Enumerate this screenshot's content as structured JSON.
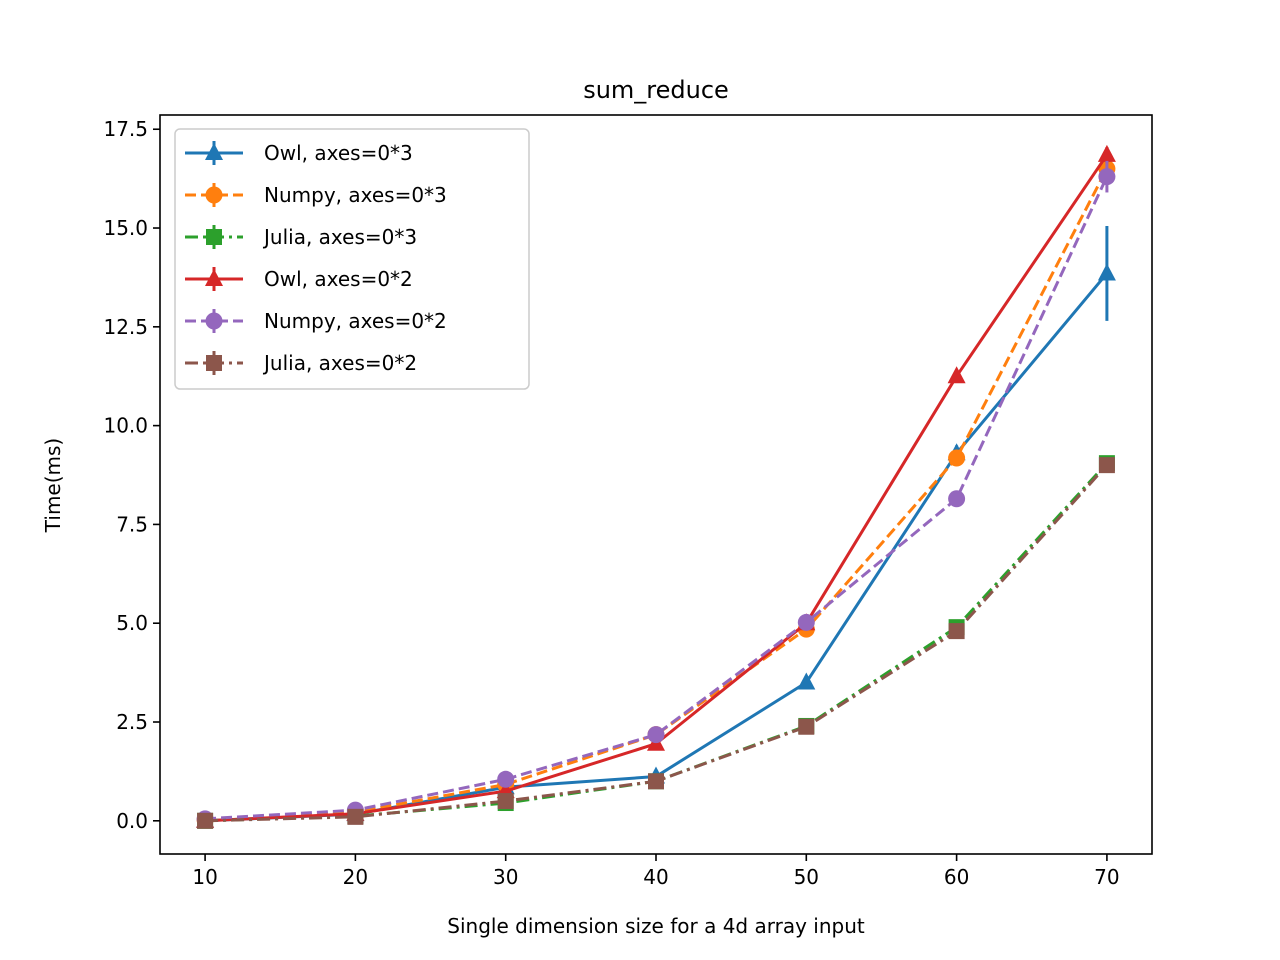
{
  "chart_data": {
    "type": "line",
    "title": "sum_reduce",
    "xlabel": "Single dimension size for a 4d array input",
    "ylabel": "Time(ms)",
    "xlim": [
      7,
      73
    ],
    "ylim": [
      -0.84,
      17.86
    ],
    "xticks": [
      10,
      20,
      30,
      40,
      50,
      60,
      70
    ],
    "yticks": [
      0.0,
      2.5,
      5.0,
      7.5,
      10.0,
      12.5,
      15.0,
      17.5
    ],
    "ytick_labels": [
      "0.0",
      "2.5",
      "5.0",
      "7.5",
      "10.0",
      "12.5",
      "15.0",
      "17.5"
    ],
    "grid": false,
    "legend_position": "top-left",
    "x": [
      10,
      20,
      30,
      40,
      50,
      60,
      70
    ],
    "series": [
      {
        "name": "Owl, axes=0*3",
        "color": "#1f77b4",
        "dash": "solid",
        "marker": "triangle",
        "values": [
          0.0,
          0.17,
          0.85,
          1.12,
          3.5,
          9.3,
          13.85
        ],
        "errors": [
          0.02,
          0.03,
          0.05,
          0.05,
          0.1,
          0.2,
          1.2
        ]
      },
      {
        "name": "Numpy, axes=0*3",
        "color": "#ff7f0e",
        "dash": "dashed",
        "marker": "circle",
        "values": [
          0.02,
          0.22,
          0.92,
          2.18,
          4.85,
          9.18,
          16.5
        ],
        "errors": [
          0.01,
          0.02,
          0.04,
          0.05,
          0.08,
          0.15,
          0.3
        ]
      },
      {
        "name": "Julia, axes=0*3",
        "color": "#2ca02c",
        "dash": "dashdot",
        "marker": "square",
        "values": [
          0.0,
          0.12,
          0.45,
          1.0,
          2.4,
          4.9,
          9.05
        ],
        "errors": [
          0.01,
          0.01,
          0.02,
          0.03,
          0.05,
          0.08,
          0.12
        ]
      },
      {
        "name": "Owl, axes=0*2",
        "color": "#d62728",
        "dash": "solid",
        "marker": "triangle",
        "values": [
          0.0,
          0.18,
          0.75,
          1.95,
          5.0,
          11.25,
          16.85
        ],
        "errors": [
          0.02,
          0.03,
          0.04,
          0.06,
          0.1,
          0.15,
          0.2
        ]
      },
      {
        "name": "Numpy, axes=0*2",
        "color": "#9467bd",
        "dash": "dashed",
        "marker": "circle",
        "values": [
          0.05,
          0.27,
          1.05,
          2.18,
          5.02,
          8.15,
          16.3
        ],
        "errors": [
          0.01,
          0.02,
          0.04,
          0.05,
          0.08,
          0.15,
          0.4
        ]
      },
      {
        "name": "Julia, axes=0*2",
        "color": "#8c564b",
        "dash": "dashdot",
        "marker": "square",
        "values": [
          0.0,
          0.1,
          0.5,
          1.0,
          2.38,
          4.8,
          9.0
        ],
        "errors": [
          0.01,
          0.01,
          0.02,
          0.03,
          0.05,
          0.08,
          0.12
        ]
      }
    ]
  }
}
